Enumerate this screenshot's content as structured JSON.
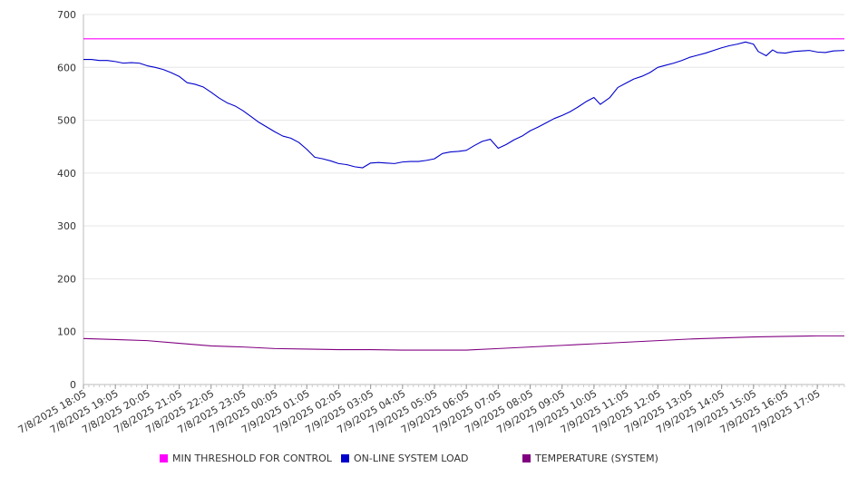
{
  "chart_data": {
    "type": "line",
    "title": "",
    "xlabel": "",
    "ylabel": "",
    "ylim": [
      0,
      700
    ],
    "y_ticks": [
      0,
      100,
      200,
      300,
      400,
      500,
      600,
      700
    ],
    "grid": "horizontal",
    "legend_position": "bottom",
    "x_tick_labels": [
      "7/8/2025 18:05",
      "7/8/2025 19:05",
      "7/8/2025 20:05",
      "7/8/2025 21:05",
      "7/8/2025 22:05",
      "7/8/2025 23:05",
      "7/9/2025 00:05",
      "7/9/2025 01:05",
      "7/9/2025 02:05",
      "7/9/2025 03:05",
      "7/9/2025 04:05",
      "7/9/2025 05:05",
      "7/9/2025 06:05",
      "7/9/2025 07:05",
      "7/9/2025 08:05",
      "7/9/2025 09:05",
      "7/9/2025 10:05",
      "7/9/2025 11:05",
      "7/9/2025 12:05",
      "7/9/2025 13:05",
      "7/9/2025 14:05",
      "7/9/2025 15:05",
      "7/9/2025 16:05",
      "7/9/2025 17:05"
    ],
    "x_hours_range": [
      0,
      23.85
    ],
    "series": [
      {
        "name": "MIN THRESHOLD FOR CONTROL",
        "color": "#ff00ff",
        "points": [
          [
            0,
            654
          ],
          [
            23.85,
            654
          ]
        ]
      },
      {
        "name": "ON-LINE SYSTEM LOAD",
        "color": "#0000cc",
        "points": [
          [
            0,
            615
          ],
          [
            0.25,
            615
          ],
          [
            0.5,
            613
          ],
          [
            0.75,
            613
          ],
          [
            1,
            611
          ],
          [
            1.25,
            608
          ],
          [
            1.5,
            609
          ],
          [
            1.75,
            608
          ],
          [
            2,
            603
          ],
          [
            2.25,
            600
          ],
          [
            2.5,
            596
          ],
          [
            2.75,
            590
          ],
          [
            3,
            583
          ],
          [
            3.25,
            571
          ],
          [
            3.5,
            568
          ],
          [
            3.75,
            563
          ],
          [
            4,
            553
          ],
          [
            4.25,
            542
          ],
          [
            4.5,
            533
          ],
          [
            4.75,
            527
          ],
          [
            5,
            518
          ],
          [
            5.25,
            507
          ],
          [
            5.5,
            496
          ],
          [
            5.75,
            487
          ],
          [
            6,
            478
          ],
          [
            6.25,
            470
          ],
          [
            6.5,
            466
          ],
          [
            6.75,
            458
          ],
          [
            7,
            445
          ],
          [
            7.25,
            430
          ],
          [
            7.5,
            427
          ],
          [
            7.75,
            423
          ],
          [
            8,
            418
          ],
          [
            8.25,
            416
          ],
          [
            8.5,
            412
          ],
          [
            8.75,
            410
          ],
          [
            9,
            419
          ],
          [
            9.25,
            420
          ],
          [
            9.5,
            419
          ],
          [
            9.75,
            418
          ],
          [
            10,
            421
          ],
          [
            10.25,
            422
          ],
          [
            10.5,
            422
          ],
          [
            10.75,
            424
          ],
          [
            11,
            427
          ],
          [
            11.25,
            437
          ],
          [
            11.5,
            440
          ],
          [
            11.75,
            441
          ],
          [
            12,
            443
          ],
          [
            12.25,
            452
          ],
          [
            12.5,
            460
          ],
          [
            12.75,
            464
          ],
          [
            13,
            447
          ],
          [
            13.25,
            454
          ],
          [
            13.5,
            463
          ],
          [
            13.75,
            470
          ],
          [
            14,
            480
          ],
          [
            14.25,
            487
          ],
          [
            14.5,
            495
          ],
          [
            14.75,
            503
          ],
          [
            15,
            509
          ],
          [
            15.25,
            516
          ],
          [
            15.5,
            525
          ],
          [
            15.75,
            535
          ],
          [
            16,
            543
          ],
          [
            16.2,
            530
          ],
          [
            16.5,
            543
          ],
          [
            16.75,
            562
          ],
          [
            17,
            570
          ],
          [
            17.25,
            578
          ],
          [
            17.5,
            583
          ],
          [
            17.75,
            590
          ],
          [
            18,
            600
          ],
          [
            18.25,
            604
          ],
          [
            18.5,
            608
          ],
          [
            18.75,
            613
          ],
          [
            19,
            619
          ],
          [
            19.25,
            623
          ],
          [
            19.5,
            627
          ],
          [
            19.75,
            632
          ],
          [
            20,
            637
          ],
          [
            20.25,
            641
          ],
          [
            20.5,
            644
          ],
          [
            20.75,
            648
          ],
          [
            21,
            644
          ],
          [
            21.15,
            630
          ],
          [
            21.4,
            622
          ],
          [
            21.6,
            633
          ],
          [
            21.75,
            628
          ],
          [
            22,
            627
          ],
          [
            22.25,
            630
          ],
          [
            22.5,
            631
          ],
          [
            22.75,
            632
          ],
          [
            23,
            629
          ],
          [
            23.25,
            628
          ],
          [
            23.5,
            631
          ],
          [
            23.85,
            632
          ]
        ]
      },
      {
        "name": "TEMPERATURE (SYSTEM)",
        "color": "#800080",
        "points": [
          [
            0,
            87
          ],
          [
            1,
            85
          ],
          [
            2,
            83
          ],
          [
            3,
            78
          ],
          [
            4,
            73
          ],
          [
            5,
            71
          ],
          [
            6,
            68
          ],
          [
            7,
            67
          ],
          [
            8,
            66
          ],
          [
            9,
            66
          ],
          [
            10,
            65
          ],
          [
            11,
            65
          ],
          [
            12,
            65
          ],
          [
            13,
            68
          ],
          [
            14,
            71
          ],
          [
            15,
            74
          ],
          [
            16,
            77
          ],
          [
            17,
            80
          ],
          [
            18,
            83
          ],
          [
            19,
            86
          ],
          [
            20,
            88
          ],
          [
            21,
            90
          ],
          [
            22,
            91
          ],
          [
            23,
            92
          ],
          [
            23.85,
            92
          ]
        ]
      }
    ]
  }
}
